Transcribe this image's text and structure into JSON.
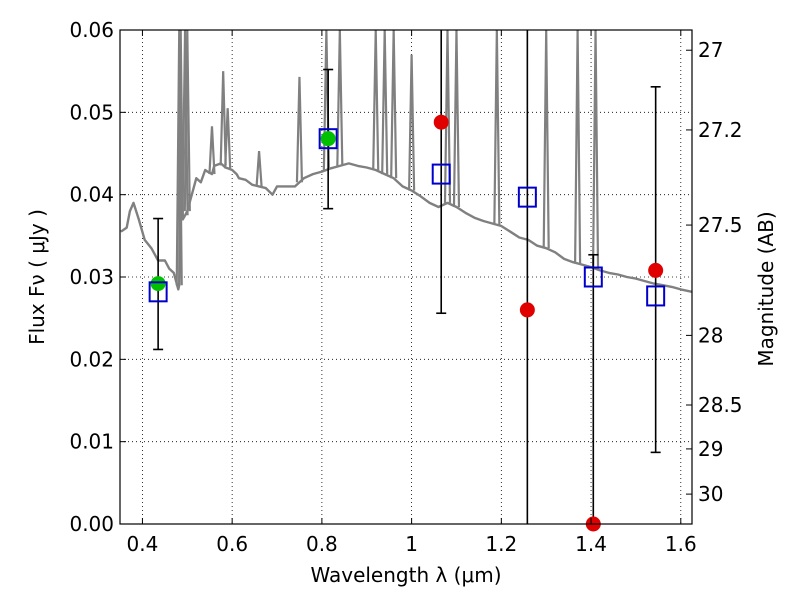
{
  "chart_data": {
    "type": "scatter",
    "xlabel": "Wavelength  λ (μm)",
    "ylabel": "Flux  Fν  ( μJy )",
    "ylabel_right": "Magnitude (AB)",
    "xlim": [
      0.35,
      1.625
    ],
    "ylim": [
      0,
      0.06
    ],
    "grid": true,
    "x_ticks": [
      0.4,
      0.6,
      0.8,
      1.0,
      1.2,
      1.4,
      1.6
    ],
    "x_tick_labels": [
      "0.4",
      "0.6",
      "0.8",
      "1",
      "1.2",
      "1.4",
      "1.6"
    ],
    "y_ticks": [
      0,
      0.01,
      0.02,
      0.03,
      0.04,
      0.05,
      0.06
    ],
    "y_tick_labels": [
      "0.00",
      "0.01",
      "0.02",
      "0.03",
      "0.04",
      "0.05",
      "0.06"
    ],
    "right_ticks": [
      27,
      27.2,
      27.5,
      28,
      28.5,
      29,
      30
    ],
    "right_tick_labels": [
      "27",
      "27.2",
      "27.5",
      "28",
      "28.5",
      "29",
      "30"
    ],
    "colors": {
      "model": "#808080",
      "green": "#00c000",
      "red": "#e00000",
      "blue": "#0000cc",
      "errorbar": "#000000"
    },
    "series": [
      {
        "marker": "green-circle",
        "x": [
          0.435,
          0.814
        ],
        "y": [
          0.0292,
          0.0468
        ],
        "yerr_low": [
          0.0212,
          0.0383
        ],
        "yerr_high": [
          0.0371,
          0.0552
        ]
      },
      {
        "marker": "red-circle",
        "x": [
          1.066,
          1.258,
          1.405,
          1.544
        ],
        "y": [
          0.0488,
          0.026,
          0.0,
          0.0308
        ],
        "yerr_low": [
          0.0256,
          0.0,
          0.0,
          0.0087
        ],
        "yerr_high": [
          0.06,
          0.06,
          0.0327,
          0.0531
        ]
      },
      {
        "marker": "blue-open-square",
        "x": [
          0.435,
          0.814,
          1.066,
          1.258,
          1.405,
          1.544
        ],
        "y": [
          0.0282,
          0.0468,
          0.0425,
          0.0397,
          0.03,
          0.0277
        ]
      },
      {
        "marker": "model-line",
        "x": [
          0.352,
          0.365,
          0.372,
          0.38,
          0.392,
          0.405,
          0.42,
          0.435,
          0.45,
          0.46,
          0.47,
          0.48,
          0.482,
          0.485,
          0.49,
          0.495,
          0.5,
          0.51,
          0.52,
          0.53,
          0.54,
          0.545,
          0.555,
          0.56,
          0.575,
          0.585,
          0.59,
          0.6,
          0.61,
          0.615,
          0.63,
          0.645,
          0.66,
          0.675,
          0.69,
          0.7,
          0.72,
          0.74,
          0.76,
          0.78,
          0.8,
          0.82,
          0.84,
          0.86,
          0.88,
          0.9,
          0.92,
          0.94,
          0.96,
          0.98,
          1.0,
          1.02,
          1.04,
          1.06,
          1.08,
          1.1,
          1.12,
          1.14,
          1.16,
          1.18,
          1.2,
          1.22,
          1.24,
          1.26,
          1.28,
          1.3,
          1.32,
          1.34,
          1.36,
          1.38,
          1.4,
          1.42,
          1.44,
          1.46,
          1.48,
          1.5,
          1.52,
          1.54,
          1.56,
          1.58,
          1.6,
          1.625
        ],
        "y": [
          0.0355,
          0.036,
          0.038,
          0.039,
          0.037,
          0.0345,
          0.0335,
          0.032,
          0.032,
          0.031,
          0.0305,
          0.0285,
          0.029,
          0.06,
          0.037,
          0.0375,
          0.038,
          0.04,
          0.042,
          0.0415,
          0.043,
          0.0428,
          0.0425,
          0.0435,
          0.0438,
          0.0433,
          0.0432,
          0.043,
          0.0425,
          0.042,
          0.0418,
          0.0412,
          0.041,
          0.0408,
          0.04,
          0.041,
          0.041,
          0.041,
          0.042,
          0.0425,
          0.0428,
          0.0432,
          0.0435,
          0.0438,
          0.0435,
          0.0433,
          0.043,
          0.0425,
          0.042,
          0.041,
          0.0405,
          0.0398,
          0.039,
          0.0385,
          0.039,
          0.0385,
          0.0378,
          0.0372,
          0.0368,
          0.0365,
          0.0362,
          0.0355,
          0.0348,
          0.0345,
          0.0338,
          0.0335,
          0.033,
          0.0322,
          0.0318,
          0.0315,
          0.0312,
          0.0308,
          0.0305,
          0.0303,
          0.03,
          0.0298,
          0.0295,
          0.0292,
          0.029,
          0.0288,
          0.0285,
          0.0282
        ]
      },
      {
        "marker": "emission-spikes",
        "x": [
          0.482,
          0.495,
          0.5,
          0.555,
          0.58,
          0.59,
          0.66,
          0.75,
          0.81,
          0.84,
          0.92,
          0.94,
          0.96,
          1.0,
          1.08,
          1.1,
          1.19,
          1.3,
          1.37,
          1.41
        ],
        "y": [
          0.06,
          0.06,
          0.06,
          0.0483,
          0.055,
          0.0505,
          0.0453,
          0.0543,
          0.06,
          0.06,
          0.06,
          0.06,
          0.06,
          0.057,
          0.06,
          0.06,
          0.06,
          0.06,
          0.06,
          0.06
        ]
      }
    ]
  }
}
